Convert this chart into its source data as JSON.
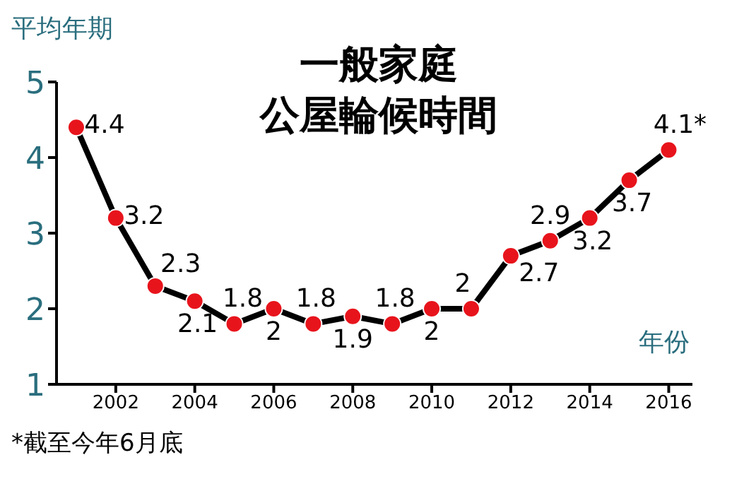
{
  "chart_data": {
    "type": "line",
    "title": "一般家庭公屋輪候時間",
    "ylabel": "平均年期",
    "xlabel": "年份",
    "x": [
      2001,
      2002,
      2003,
      2004,
      2005,
      2006,
      2007,
      2008,
      2009,
      2010,
      2011,
      2012,
      2013,
      2014,
      2015,
      2016
    ],
    "series": [
      {
        "color": "#000000",
        "values": [
          4.4,
          3.2,
          2.3,
          2.1,
          1.8,
          2,
          1.8,
          1.9,
          1.8,
          2,
          2,
          2.7,
          2.9,
          3.2,
          3.7,
          4.1
        ],
        "value_labels": [
          "4.4",
          "3.2",
          "2.3",
          "2.1",
          "1.8",
          "2",
          "1.8",
          "1.9",
          "1.8",
          "2",
          "2",
          "2.7",
          "2.9",
          "3.2",
          "3.7",
          "4.1*"
        ]
      }
    ],
    "marker": "circle",
    "xlim": [
      2000.5,
      2016.6
    ],
    "xticks": [
      2002,
      2004,
      2006,
      2008,
      2010,
      2012,
      2014,
      2016
    ],
    "ylim": [
      1,
      5
    ],
    "yticks": [
      1,
      2,
      3,
      4,
      5
    ],
    "grid": false,
    "legend": false,
    "annotations": [
      "*截至今年6月底"
    ]
  }
}
